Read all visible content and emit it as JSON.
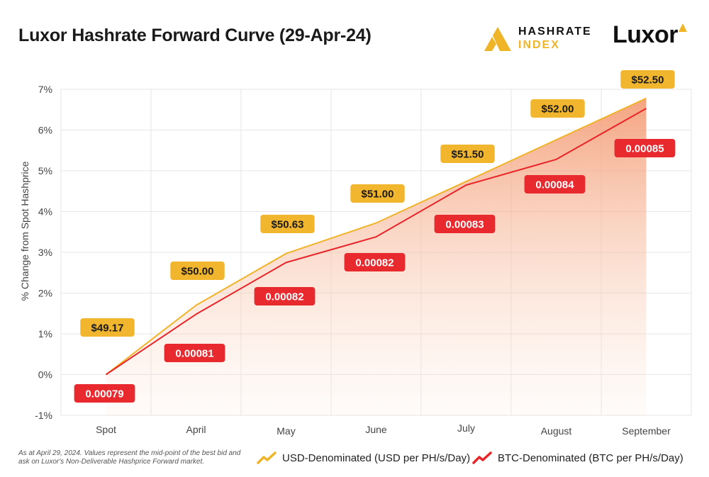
{
  "title": "Luxor Hashrate Forward Curve (29-Apr-24)",
  "logos": {
    "hashrate_line1": "HASHRATE",
    "hashrate_line2": "INDEX",
    "luxor": "Luxor"
  },
  "footnote": "As at April 29, 2024. Values represent the mid-point of the best bid and ask on Luxor's Non-Deliverable Hashprice Forward market.",
  "legend": {
    "usd": "USD-Denominated (USD per PH/s/Day)",
    "btc": "BTC-Denominated (BTC per PH/s/Day)"
  },
  "colors": {
    "usd": "#f0b429",
    "btc": "#e8262a",
    "usd_label_bg": "#f2b52e",
    "btc_label_bg": "#e8292e",
    "fill": "#f6a98a"
  },
  "chart_data": {
    "type": "line",
    "categories": [
      "Spot",
      "April",
      "May",
      "June",
      "July",
      "August",
      "September"
    ],
    "ylabel": "% Change from Spot Hashprice",
    "xlabel": "",
    "ylim": [
      -1,
      7
    ],
    "yticks": [
      "-1%",
      "0%",
      "1%",
      "2%",
      "3%",
      "4%",
      "5%",
      "6%",
      "7%"
    ],
    "grid": true,
    "series": [
      {
        "name": "USD-Denominated (USD per PH/s/Day)",
        "key": "usd",
        "values": [
          0,
          1.7,
          2.97,
          3.72,
          4.74,
          5.76,
          6.78
        ],
        "labels": [
          "$49.17",
          "$50.00",
          "$50.63",
          "$51.00",
          "$51.50",
          "$52.00",
          "$52.50"
        ]
      },
      {
        "name": "BTC-Denominated (BTC per PH/s/Day)",
        "key": "btc",
        "values": [
          0,
          1.48,
          2.75,
          3.38,
          4.65,
          5.28,
          6.53
        ],
        "labels": [
          "0.00079",
          "0.00081",
          "0.00082",
          "0.00082",
          "0.00083",
          "0.00084",
          "0.00085"
        ]
      }
    ]
  }
}
